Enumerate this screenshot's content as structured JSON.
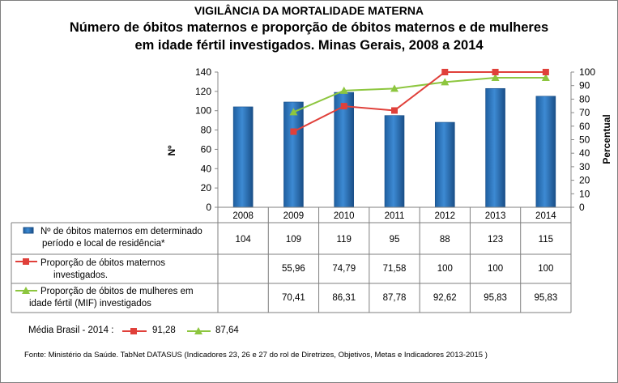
{
  "header": {
    "title": "VIGILÂNCIA DA MORTALIDADE MATERNA",
    "subtitle_line1": "Número de óbitos maternos e proporção de óbitos maternos e de mulheres",
    "subtitle_line2": "em idade fértil investigados. Minas Gerais, 2008 a 2014"
  },
  "chart_data": {
    "type": "bar",
    "categories": [
      "2008",
      "2009",
      "2010",
      "2011",
      "2012",
      "2013",
      "2014"
    ],
    "y_left": {
      "label": "Nº",
      "ylim": [
        0,
        140
      ],
      "ticks": [
        "0",
        "20",
        "40",
        "60",
        "80",
        "100",
        "120",
        "140"
      ]
    },
    "y_right": {
      "label": "Percentual",
      "ylim": [
        0,
        100
      ],
      "ticks": [
        "0",
        "10",
        "20",
        "30",
        "40",
        "50",
        "60",
        "70",
        "80",
        "90",
        "100"
      ]
    },
    "grid": false,
    "series": [
      {
        "name": "Nº de óbitos maternos em determinado período e local de residência*",
        "type": "bar",
        "axis": "left",
        "color": "#2e75b6",
        "values": [
          104,
          109,
          119,
          95,
          88,
          123,
          115
        ],
        "labels": [
          "104",
          "109",
          "119",
          "95",
          "88",
          "123",
          "115"
        ]
      },
      {
        "name": "Proporção de óbitos maternos investigados.",
        "type": "line",
        "axis": "right",
        "color": "#e0403a",
        "values": [
          null,
          55.96,
          74.79,
          71.58,
          100,
          100,
          100
        ],
        "labels": [
          "",
          "55,96",
          "74,79",
          "71,58",
          "100",
          "100",
          "100"
        ]
      },
      {
        "name": "Proporção de óbitos de mulheres em idade fértil (MIF) investigados",
        "type": "line",
        "axis": "right",
        "color": "#8dc63f",
        "values": [
          null,
          70.41,
          86.31,
          87.78,
          92.62,
          95.83,
          95.83
        ],
        "labels": [
          "",
          "70,41",
          "86,31",
          "87,78",
          "92,62",
          "95,83",
          "95,83"
        ]
      }
    ]
  },
  "table": {
    "row1_label_a": "Nº de óbitos maternos em determinado",
    "row1_label_b": "período e local de residência*",
    "row2_label_a": "Proporção de óbitos maternos",
    "row2_label_b": "investigados.",
    "row3_label_a": "Proporção de óbitos de mulheres em",
    "row3_label_b": "idade fértil (MIF) investigados"
  },
  "footer": {
    "brasil_label": "Média Brasil - 2014 :",
    "brasil_maternos": "91,28",
    "brasil_mif": "87,64",
    "source": "Fonte: Ministério da Saúde. TabNet DATASUS (Indicadores 23, 26 e 27  do rol de Diretrizes, Objetivos, Metas e Indicadores 2013-2015 )"
  }
}
